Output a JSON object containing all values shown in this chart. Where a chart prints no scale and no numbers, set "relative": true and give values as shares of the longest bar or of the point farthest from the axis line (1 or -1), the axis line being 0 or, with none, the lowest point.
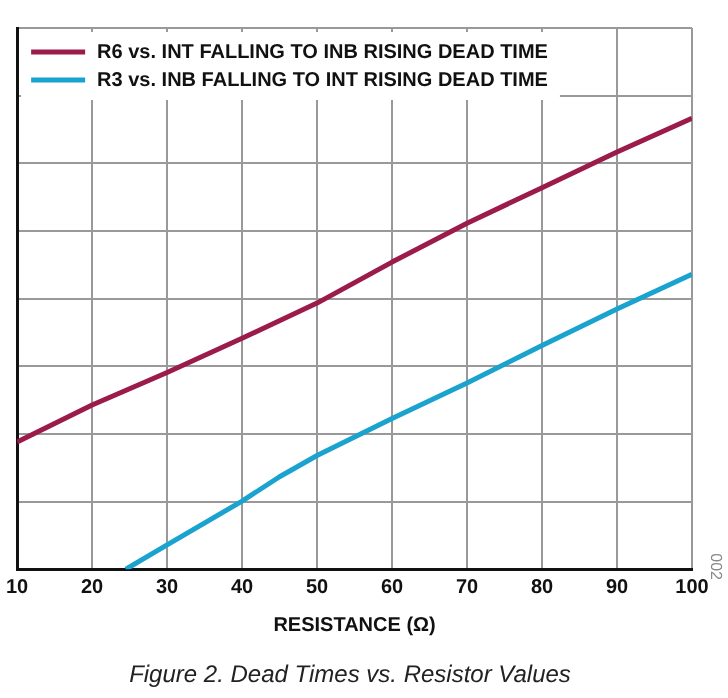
{
  "chart_data": {
    "type": "line",
    "title": "Figure 2. Dead Times vs. Resistor Values",
    "xlabel": "RESISTANCE (Ω)",
    "relative": true,
    "xlim": [
      10,
      100
    ],
    "xticks": [
      10,
      20,
      30,
      40,
      50,
      60,
      70,
      80,
      90,
      100
    ],
    "grid": true,
    "legend": "top left",
    "marker": "none",
    "line_style": "solid",
    "annotations": [
      "002"
    ],
    "series": [
      {
        "name": "R6 vs. INT FALLING TO INB RISING DEAD TIME",
        "color": "#9b1b4a",
        "x": [
          10,
          20,
          30,
          40,
          50,
          60,
          70,
          80,
          90,
          100
        ],
        "values": [
          0.282,
          0.364,
          0.436,
          0.512,
          0.59,
          0.681,
          0.767,
          0.846,
          0.925,
          1
        ]
      },
      {
        "name": "R3 vs. INB FALLING TO INT RISING DEAD TIME",
        "color": "#1ba3d0",
        "x": [
          24.5,
          30,
          40,
          45,
          50,
          60,
          70,
          80,
          90,
          100
        ],
        "values": [
          0,
          0.054,
          0.151,
          0.205,
          0.252,
          0.334,
          0.413,
          0.496,
          0.577,
          0.654
        ]
      }
    ]
  }
}
